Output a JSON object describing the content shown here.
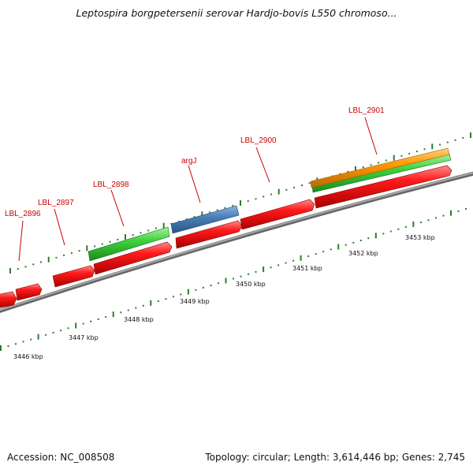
{
  "title": "Leptospira borgpetersenii serovar Hardjo-bovis L550 chromoso...",
  "footer": {
    "accession": "Accession: NC_008508",
    "summary": "Topology: circular; Length: 3,614,446 bp; Genes: 2,745"
  },
  "colors": {
    "backbone": "#8a8a8a",
    "gene_red": "#ee1111",
    "gene_green": "#33cc33",
    "gene_blue": "#4a80b8",
    "gene_orange": "#ff9900",
    "tick": "#2f7a2f",
    "label": "#cc0000"
  },
  "scale_labels": [
    "3446 kbp",
    "3447 kbp",
    "3448 kbp",
    "3449 kbp",
    "3450 kbp",
    "3451 kbp",
    "3452 kbp",
    "3453 kbp"
  ],
  "gene_labels": [
    "LBL_2896",
    "LBL_2897",
    "LBL_2898",
    "argJ",
    "LBL_2900",
    "LBL_2901"
  ]
}
